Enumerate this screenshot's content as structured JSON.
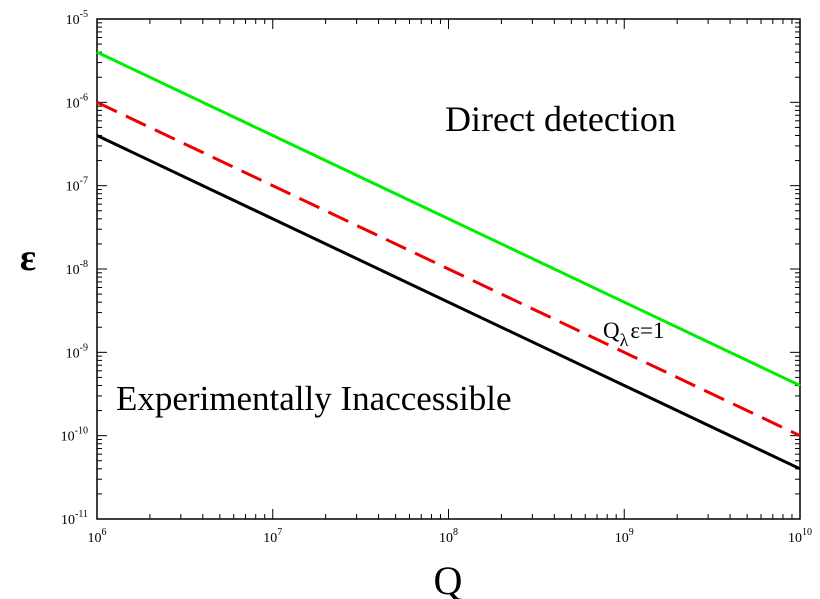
{
  "chart_data": {
    "type": "line",
    "xlabel": "Q",
    "ylabel": "ε",
    "xscale": "log",
    "yscale": "log",
    "xlim": [
      1000000,
      10000000000
    ],
    "ylim": [
      1e-11,
      1e-05
    ],
    "x_ticks": [
      {
        "base": "10",
        "exp": "6"
      },
      {
        "base": "10",
        "exp": "7"
      },
      {
        "base": "10",
        "exp": "8"
      },
      {
        "base": "10",
        "exp": "9"
      },
      {
        "base": "10",
        "exp": "10"
      }
    ],
    "y_ticks": [
      {
        "base": "10",
        "exp": "-11"
      },
      {
        "base": "10",
        "exp": "-10"
      },
      {
        "base": "10",
        "exp": "-9"
      },
      {
        "base": "10",
        "exp": "-8"
      },
      {
        "base": "10",
        "exp": "-7"
      },
      {
        "base": "10",
        "exp": "-6"
      },
      {
        "base": "10",
        "exp": "-5"
      }
    ],
    "grid": false,
    "series": [
      {
        "color": "#00ee00",
        "style": "solid",
        "x": [
          1000000,
          10000000000
        ],
        "y": [
          4e-06,
          4e-10
        ]
      },
      {
        "color": "#ee0000",
        "style": "dashed",
        "x": [
          1000000,
          10000000000
        ],
        "y": [
          1e-06,
          1e-10
        ]
      },
      {
        "color": "#000000",
        "style": "solid",
        "x": [
          1000000,
          10000000000
        ],
        "y": [
          4e-07,
          4e-11
        ]
      }
    ],
    "annotations": {
      "direct": "Direct  detection",
      "inaccessible": "Experimentally Inaccessible",
      "curve_q": "Q",
      "curve_sub": "λ",
      "curve_rest": "ε=1"
    }
  }
}
